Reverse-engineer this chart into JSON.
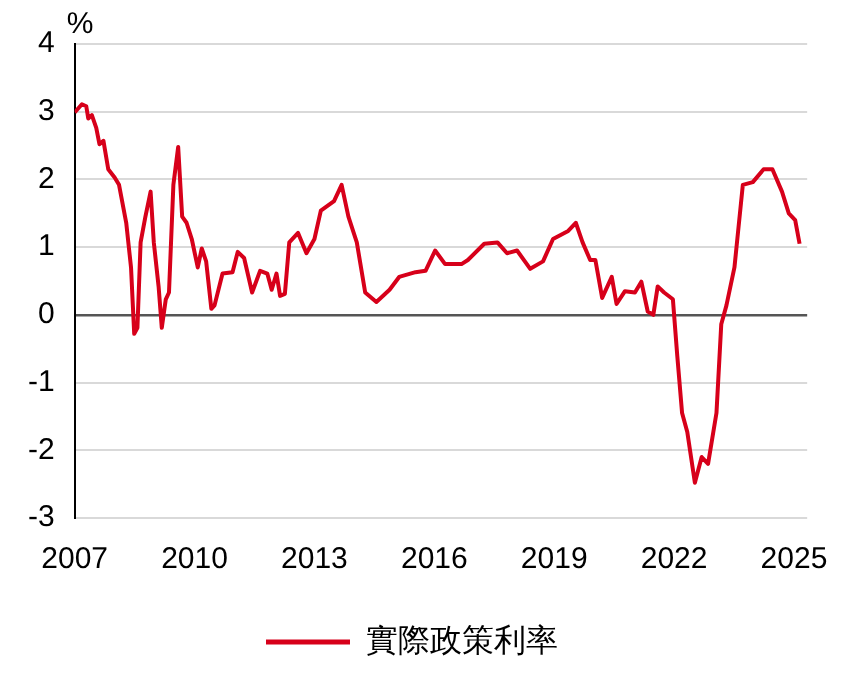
{
  "chart_data": {
    "type": "line",
    "ylabel": "%",
    "legend": "bottom",
    "grid": "y",
    "marker": "none",
    "line_style": "solid",
    "xlim": [
      2007,
      2025.33
    ],
    "xticks": [
      2007,
      2010,
      2013,
      2016,
      2019,
      2022,
      2025
    ],
    "ylim": [
      -3,
      4
    ],
    "yticks": [
      -3,
      -2,
      -1,
      0,
      1,
      2,
      3,
      4
    ],
    "series": [
      {
        "name": "實際政策利率",
        "color": "#d7001a",
        "x": [
          2007.0,
          2007.18,
          2007.29,
          2007.34,
          2007.43,
          2007.54,
          2007.62,
          2007.72,
          2007.84,
          2008.0,
          2008.11,
          2008.29,
          2008.41,
          2008.49,
          2008.57,
          2008.65,
          2008.77,
          2008.9,
          2008.98,
          2009.1,
          2009.18,
          2009.28,
          2009.36,
          2009.47,
          2009.59,
          2009.69,
          2009.8,
          2009.93,
          2010.08,
          2010.18,
          2010.29,
          2010.42,
          2010.5,
          2010.7,
          2010.95,
          2011.08,
          2011.24,
          2011.44,
          2011.64,
          2011.82,
          2011.93,
          2012.05,
          2012.14,
          2012.26,
          2012.37,
          2012.59,
          2012.8,
          2013.0,
          2013.16,
          2013.49,
          2013.68,
          2013.85,
          2014.06,
          2014.27,
          2014.55,
          2014.88,
          2015.12,
          2015.53,
          2015.78,
          2016.02,
          2016.27,
          2016.68,
          2016.84,
          2017.25,
          2017.58,
          2017.82,
          2018.07,
          2018.4,
          2018.72,
          2018.97,
          2019.35,
          2019.54,
          2019.71,
          2019.9,
          2020.03,
          2020.2,
          2020.44,
          2020.56,
          2020.77,
          2021.02,
          2021.18,
          2021.34,
          2021.48,
          2021.59,
          2021.75,
          2021.97,
          2022.08,
          2022.2,
          2022.33,
          2022.52,
          2022.69,
          2022.85,
          2023.06,
          2023.18,
          2023.31,
          2023.51,
          2023.72,
          2023.97,
          2024.24,
          2024.46,
          2024.7,
          2024.87,
          2025.03,
          2025.14
        ],
        "values": [
          2.99,
          3.11,
          3.08,
          2.9,
          2.95,
          2.76,
          2.52,
          2.57,
          2.15,
          2.03,
          1.92,
          1.36,
          0.7,
          -0.28,
          -0.19,
          1.07,
          1.45,
          1.82,
          1.07,
          0.42,
          -0.19,
          0.23,
          0.33,
          1.92,
          2.48,
          1.45,
          1.36,
          1.12,
          0.7,
          0.98,
          0.79,
          0.09,
          0.14,
          0.61,
          0.63,
          0.93,
          0.84,
          0.33,
          0.65,
          0.61,
          0.37,
          0.61,
          0.28,
          0.31,
          1.07,
          1.21,
          0.91,
          1.12,
          1.54,
          1.68,
          1.92,
          1.45,
          1.07,
          0.33,
          0.19,
          0.37,
          0.56,
          0.63,
          0.65,
          0.95,
          0.75,
          0.75,
          0.81,
          1.05,
          1.07,
          0.91,
          0.95,
          0.68,
          0.79,
          1.12,
          1.24,
          1.36,
          1.07,
          0.81,
          0.81,
          0.25,
          0.56,
          0.16,
          0.35,
          0.33,
          0.49,
          0.05,
          0.0,
          0.42,
          0.33,
          0.23,
          -0.61,
          -1.45,
          -1.73,
          -2.48,
          -2.1,
          -2.2,
          -1.45,
          -0.14,
          0.14,
          0.7,
          1.92,
          1.96,
          2.15,
          2.15,
          1.82,
          1.5,
          1.4,
          1.05
        ]
      }
    ]
  }
}
